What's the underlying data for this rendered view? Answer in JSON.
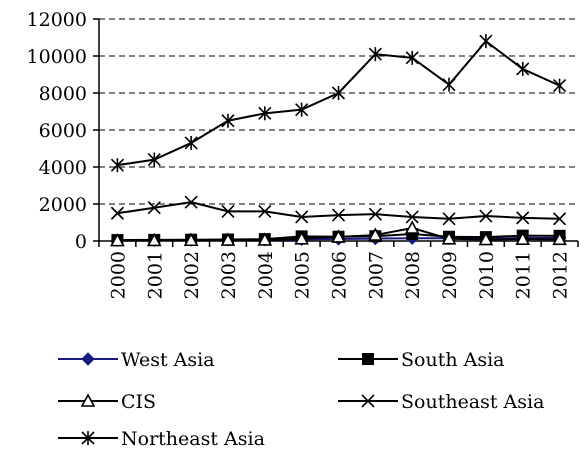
{
  "chart_data": {
    "type": "line",
    "title": "",
    "xlabel": "",
    "ylabel": "",
    "categories": [
      "2000",
      "2001",
      "2002",
      "2003",
      "2004",
      "2005",
      "2006",
      "2007",
      "2008",
      "2009",
      "2010",
      "2011",
      "2012"
    ],
    "y_ticks": [
      "0",
      "2000",
      "4000",
      "6000",
      "8000",
      "10000",
      "12000"
    ],
    "ylim": [
      0,
      12000
    ],
    "grid": "horizontal dashed",
    "legend_position": "bottom",
    "series": [
      {
        "name": "West Asia",
        "marker": "diamond",
        "color": "#1a1a80",
        "values": [
          30,
          40,
          50,
          60,
          70,
          90,
          110,
          130,
          150,
          150,
          130,
          160,
          170
        ]
      },
      {
        "name": "South Asia",
        "marker": "square",
        "color": "#000000",
        "values": [
          50,
          60,
          70,
          80,
          100,
          250,
          230,
          260,
          380,
          230,
          210,
          290,
          280
        ]
      },
      {
        "name": "CIS",
        "marker": "triangle",
        "color": "#000000",
        "values": [
          20,
          30,
          40,
          50,
          60,
          120,
          220,
          320,
          700,
          120,
          80,
          100,
          90
        ]
      },
      {
        "name": "Southeast Asia",
        "marker": "x",
        "color": "#000000",
        "values": [
          1500,
          1800,
          2100,
          1600,
          1600,
          1300,
          1400,
          1450,
          1300,
          1200,
          1350,
          1250,
          1200
        ]
      },
      {
        "name": "Northeast Asia",
        "marker": "asterisk",
        "color": "#000000",
        "values": [
          4100,
          4400,
          5300,
          6500,
          6900,
          7100,
          8000,
          10100,
          9900,
          8450,
          10800,
          9300,
          8400
        ]
      }
    ]
  }
}
